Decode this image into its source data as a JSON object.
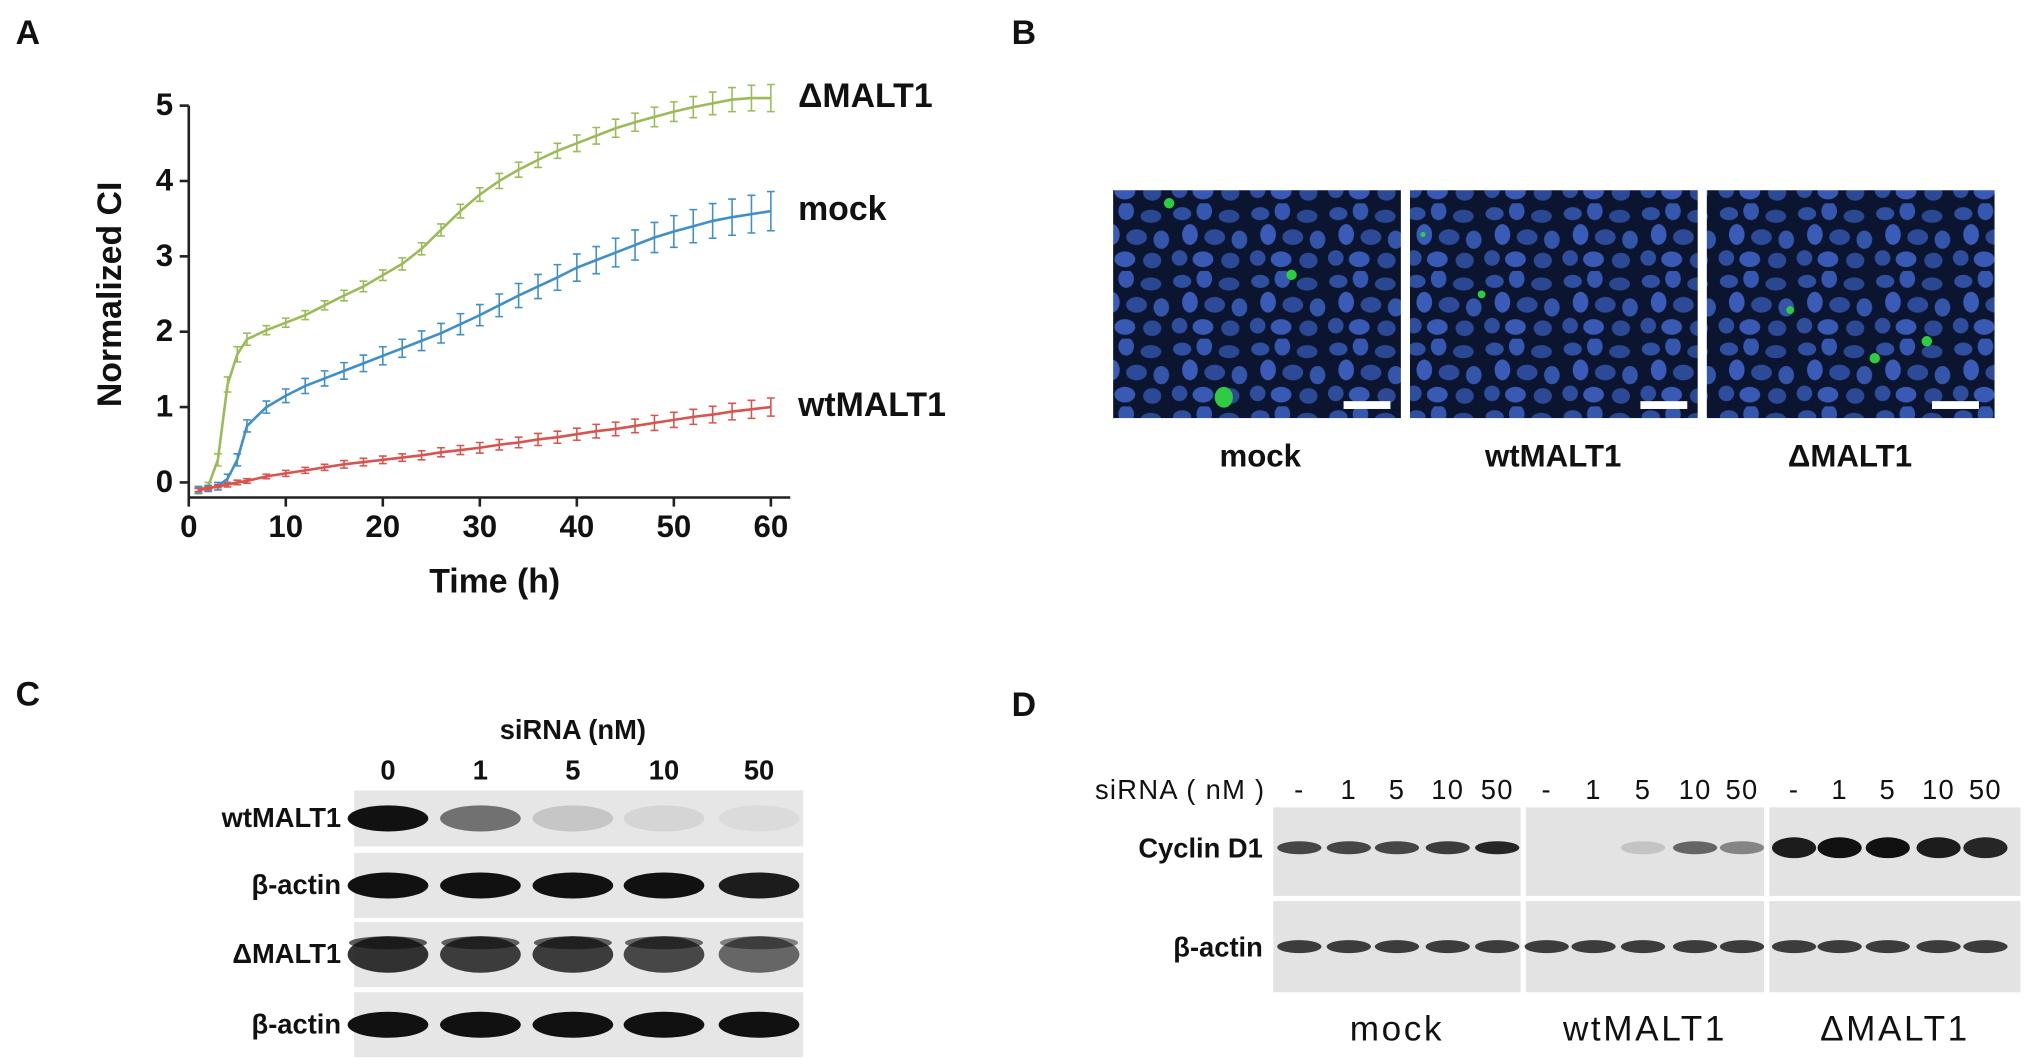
{
  "chart_data": {
    "type": "line",
    "panel": "A",
    "xlabel": "Time (h)",
    "ylabel": "Normalized CI",
    "x": [
      1,
      2,
      3,
      4,
      5,
      6,
      8,
      10,
      12,
      14,
      16,
      18,
      20,
      22,
      24,
      26,
      28,
      30,
      32,
      34,
      36,
      38,
      40,
      42,
      44,
      46,
      48,
      50,
      52,
      54,
      56,
      58,
      60
    ],
    "xlim": [
      0,
      62
    ],
    "xticks": [
      0,
      10,
      20,
      30,
      40,
      50,
      60
    ],
    "ylim": [
      -0.2,
      5
    ],
    "yticks": [
      0,
      1,
      2,
      3,
      4,
      5
    ],
    "series": [
      {
        "name": "ΔMALT1",
        "color": "#9bbb59",
        "values": [
          -0.1,
          -0.05,
          0.3,
          1.3,
          1.7,
          1.9,
          2.02,
          2.12,
          2.22,
          2.35,
          2.48,
          2.6,
          2.75,
          2.9,
          3.1,
          3.35,
          3.6,
          3.82,
          4.0,
          4.15,
          4.28,
          4.4,
          4.5,
          4.6,
          4.7,
          4.78,
          4.85,
          4.92,
          4.98,
          5.03,
          5.08,
          5.1,
          5.1
        ],
        "errors": [
          0.05,
          0.05,
          0.08,
          0.1,
          0.1,
          0.08,
          0.06,
          0.06,
          0.06,
          0.06,
          0.07,
          0.07,
          0.07,
          0.08,
          0.08,
          0.08,
          0.09,
          0.09,
          0.1,
          0.1,
          0.1,
          0.1,
          0.11,
          0.11,
          0.12,
          0.12,
          0.13,
          0.13,
          0.14,
          0.15,
          0.16,
          0.17,
          0.18
        ]
      },
      {
        "name": "mock",
        "color": "#3f8fc8",
        "values": [
          -0.1,
          -0.08,
          -0.05,
          0.05,
          0.3,
          0.75,
          1.0,
          1.15,
          1.28,
          1.38,
          1.48,
          1.58,
          1.68,
          1.78,
          1.88,
          1.98,
          2.1,
          2.22,
          2.35,
          2.48,
          2.6,
          2.72,
          2.85,
          2.95,
          3.05,
          3.15,
          3.25,
          3.33,
          3.4,
          3.47,
          3.52,
          3.56,
          3.6
        ],
        "errors": [
          0.04,
          0.04,
          0.05,
          0.06,
          0.08,
          0.08,
          0.08,
          0.09,
          0.1,
          0.1,
          0.11,
          0.11,
          0.12,
          0.12,
          0.13,
          0.13,
          0.14,
          0.14,
          0.15,
          0.16,
          0.16,
          0.17,
          0.18,
          0.18,
          0.19,
          0.2,
          0.2,
          0.21,
          0.22,
          0.23,
          0.24,
          0.25,
          0.26
        ]
      },
      {
        "name": "wtMALT1",
        "color": "#d9534f",
        "values": [
          -0.1,
          -0.08,
          -0.05,
          -0.03,
          0,
          0.02,
          0.08,
          0.12,
          0.16,
          0.2,
          0.24,
          0.27,
          0.3,
          0.33,
          0.36,
          0.4,
          0.43,
          0.46,
          0.5,
          0.53,
          0.57,
          0.6,
          0.64,
          0.68,
          0.71,
          0.75,
          0.79,
          0.83,
          0.87,
          0.9,
          0.94,
          0.97,
          1.0
        ],
        "errors": [
          0.02,
          0.02,
          0.02,
          0.03,
          0.03,
          0.03,
          0.03,
          0.04,
          0.04,
          0.04,
          0.05,
          0.05,
          0.05,
          0.05,
          0.06,
          0.06,
          0.06,
          0.07,
          0.07,
          0.07,
          0.08,
          0.08,
          0.08,
          0.09,
          0.09,
          0.09,
          0.1,
          0.1,
          0.1,
          0.11,
          0.11,
          0.12,
          0.12
        ]
      }
    ]
  },
  "panel_b": {
    "label": "B",
    "images": [
      {
        "caption": "mock"
      },
      {
        "caption": "wtMALT1"
      },
      {
        "caption": "ΔMALT1"
      }
    ]
  },
  "panel_c": {
    "label": "C",
    "title": "siRNA (nM)",
    "lanes": [
      "0",
      "1",
      "5",
      "10",
      "50"
    ],
    "rows": [
      "wtMALT1",
      "β-actin",
      "ΔMALT1",
      "β-actin"
    ]
  },
  "panel_d": {
    "label": "D",
    "lane_header": "siRNA ( nM )",
    "rows": [
      "Cyclin D1",
      "β-actin"
    ],
    "groups": [
      {
        "name": "mock",
        "lanes": [
          "-",
          "1",
          "5",
          "10",
          "50"
        ]
      },
      {
        "name": "wtMALT1",
        "lanes": [
          "-",
          "1",
          "5",
          "10",
          "50"
        ]
      },
      {
        "name": "ΔMALT1",
        "lanes": [
          "-",
          "1",
          "5",
          "10",
          "50"
        ]
      }
    ]
  }
}
